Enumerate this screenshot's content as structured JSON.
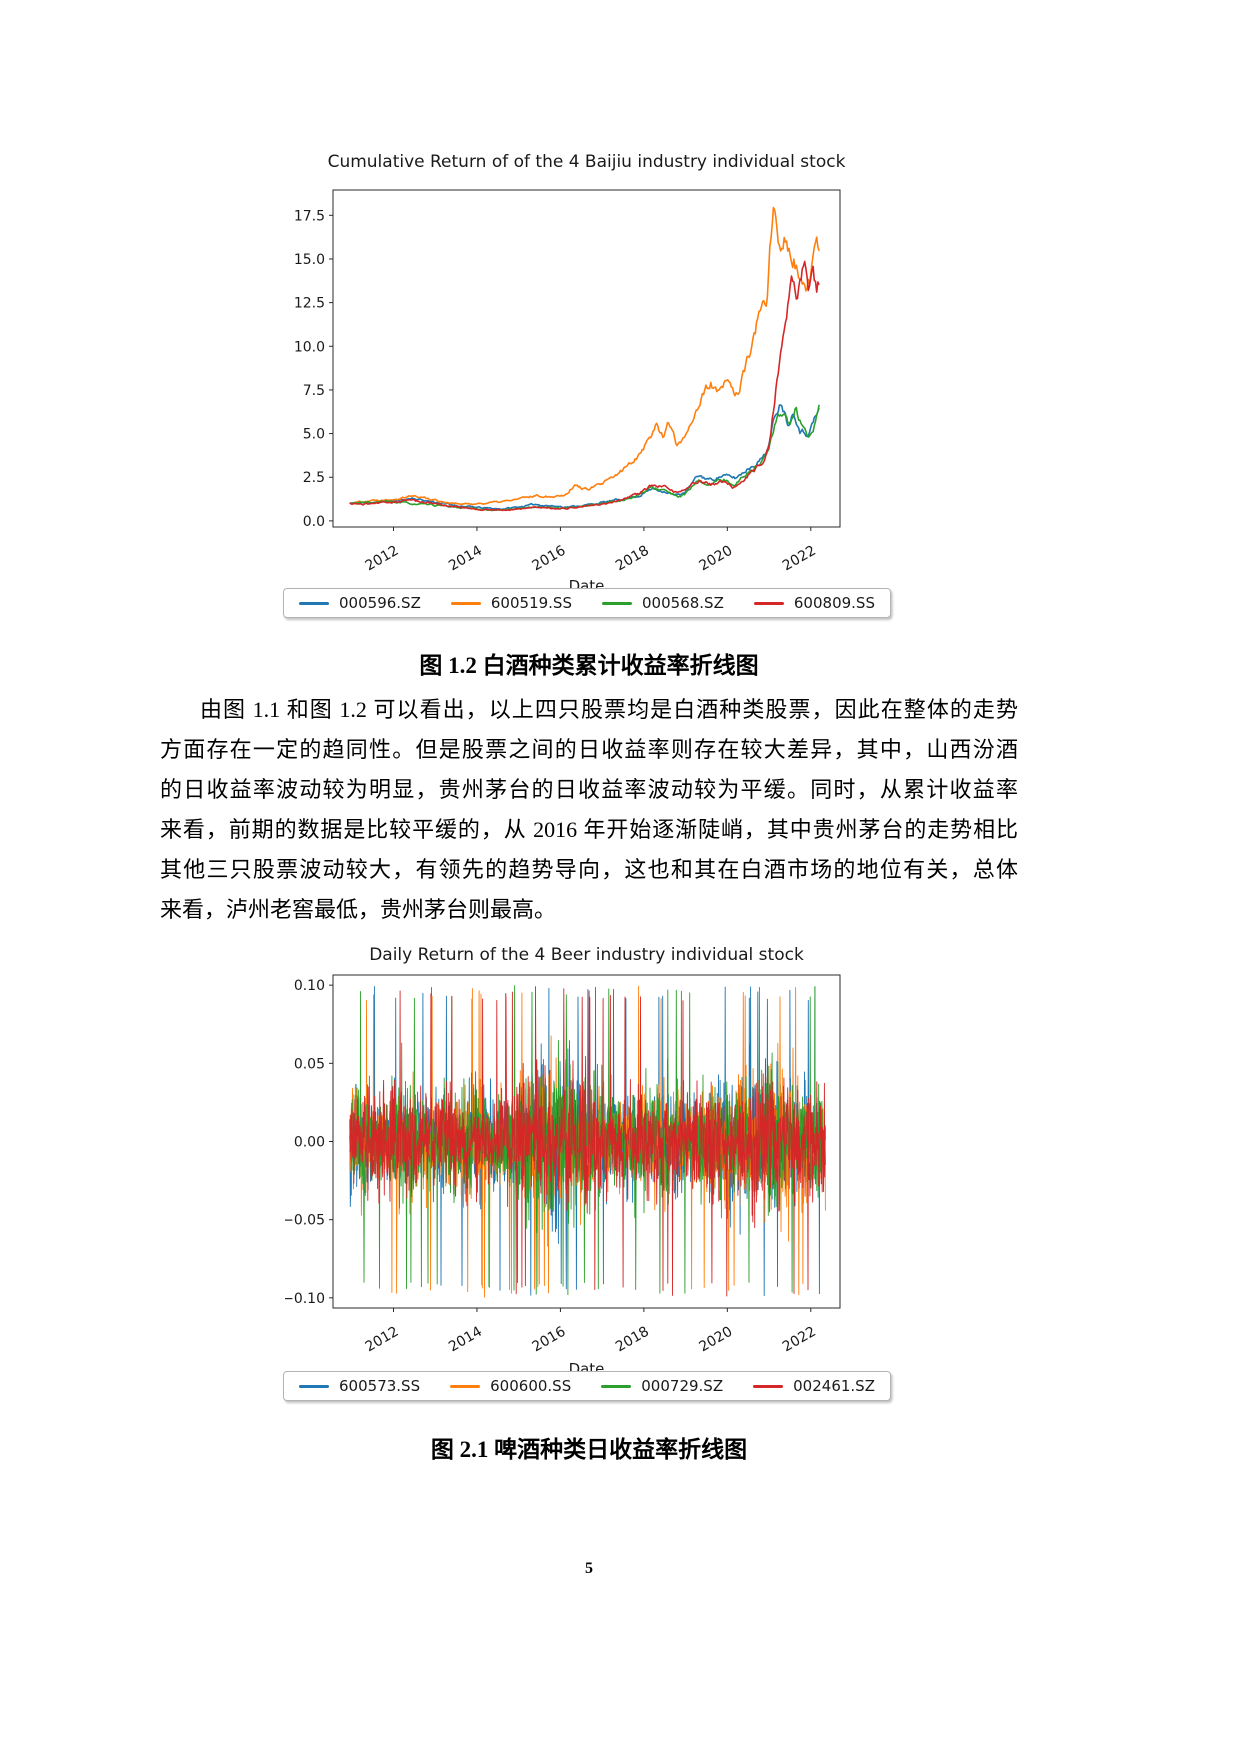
{
  "page_number": "5",
  "figure1": {
    "caption": "图 1.2 白酒种类累计收益率折线图"
  },
  "figure2": {
    "caption": "图 2.1 啤酒种类日收益率折线图"
  },
  "paragraph": {
    "lines": [
      "由图 1.1 和图 1.2 可以看出，以上四只股票均是白酒种类股票，因此在整体的走势",
      "方面存在一定的趋同性。但是股票之间的日收益率则存在较大差异，其中，山西汾酒",
      "的日收益率波动较为明显，贵州茅台的日收益率波动较为平缓。同时，从累计收益率",
      "来看，前期的数据是比较平缓的，从 2016 年开始逐渐陡峭，其中贵州茅台的走势相比",
      "其他三只股票波动较大，有领先的趋势导向，这也和其在白酒市场的地位有关，总体",
      "来看，泸州老窖最低，贵州茅台则最高。"
    ]
  },
  "chart_data": [
    {
      "type": "line",
      "title": "Cumulative Return of of the 4 Baijiu industry individual stock",
      "xlabel": "Date",
      "ylabel": "",
      "grid": false,
      "legend_position": "below",
      "xlim": [
        2010.55,
        2022.7
      ],
      "ylim": [
        -0.35,
        18.95
      ],
      "x_ticks": [
        2012,
        2014,
        2016,
        2018,
        2020,
        2022
      ],
      "y_tick_values": [
        0.0,
        2.5,
        5.0,
        7.5,
        10.0,
        12.5,
        15.0,
        17.5
      ],
      "y_tick_labels": [
        "0.0",
        "2.5",
        "5.0",
        "7.5",
        "10.0",
        "12.5",
        "15.0",
        "17.5"
      ],
      "series": [
        {
          "name": "000596.SZ",
          "color": "#1f77b4",
          "seed": 11,
          "points": [
            [
              2010.95,
              1.0
            ],
            [
              2011.3,
              1.05
            ],
            [
              2011.7,
              1.1
            ],
            [
              2012.1,
              1.15
            ],
            [
              2012.45,
              1.3
            ],
            [
              2012.8,
              1.15
            ],
            [
              2013.2,
              1.0
            ],
            [
              2013.6,
              0.85
            ],
            [
              2014.1,
              0.75
            ],
            [
              2014.6,
              0.68
            ],
            [
              2015.0,
              0.8
            ],
            [
              2015.4,
              0.95
            ],
            [
              2015.8,
              0.85
            ],
            [
              2016.2,
              0.8
            ],
            [
              2016.6,
              0.9
            ],
            [
              2017.0,
              1.05
            ],
            [
              2017.5,
              1.25
            ],
            [
              2017.9,
              1.45
            ],
            [
              2018.2,
              1.85
            ],
            [
              2018.5,
              1.7
            ],
            [
              2018.75,
              1.45
            ],
            [
              2019.0,
              1.65
            ],
            [
              2019.3,
              2.6
            ],
            [
              2019.6,
              2.35
            ],
            [
              2019.9,
              2.6
            ],
            [
              2020.2,
              2.45
            ],
            [
              2020.5,
              3.0
            ],
            [
              2020.8,
              3.5
            ],
            [
              2021.0,
              4.3
            ],
            [
              2021.15,
              6.2
            ],
            [
              2021.3,
              6.9
            ],
            [
              2021.45,
              5.6
            ],
            [
              2021.6,
              6.3
            ],
            [
              2021.75,
              5.2
            ],
            [
              2021.9,
              5.0
            ],
            [
              2022.05,
              5.6
            ],
            [
              2022.2,
              6.4
            ]
          ]
        },
        {
          "name": "600519.SS",
          "color": "#ff7f0e",
          "seed": 22,
          "points": [
            [
              2010.95,
              1.0
            ],
            [
              2011.3,
              1.15
            ],
            [
              2011.7,
              1.2
            ],
            [
              2012.1,
              1.3
            ],
            [
              2012.4,
              1.45
            ],
            [
              2012.8,
              1.3
            ],
            [
              2013.2,
              1.1
            ],
            [
              2013.6,
              0.95
            ],
            [
              2014.1,
              1.0
            ],
            [
              2014.6,
              1.1
            ],
            [
              2015.0,
              1.25
            ],
            [
              2015.4,
              1.45
            ],
            [
              2015.8,
              1.4
            ],
            [
              2016.1,
              1.5
            ],
            [
              2016.35,
              2.05
            ],
            [
              2016.6,
              1.8
            ],
            [
              2017.0,
              2.1
            ],
            [
              2017.4,
              2.7
            ],
            [
              2017.8,
              3.6
            ],
            [
              2018.1,
              4.6
            ],
            [
              2018.3,
              5.5
            ],
            [
              2018.45,
              4.9
            ],
            [
              2018.6,
              5.7
            ],
            [
              2018.8,
              4.2
            ],
            [
              2019.0,
              5.0
            ],
            [
              2019.3,
              6.6
            ],
            [
              2019.6,
              7.9
            ],
            [
              2019.8,
              7.2
            ],
            [
              2020.0,
              8.0
            ],
            [
              2020.25,
              7.2
            ],
            [
              2020.5,
              9.3
            ],
            [
              2020.75,
              11.6
            ],
            [
              2020.95,
              12.6
            ],
            [
              2021.1,
              18.6
            ],
            [
              2021.25,
              15.3
            ],
            [
              2021.4,
              16.3
            ],
            [
              2021.55,
              15.2
            ],
            [
              2021.7,
              14.3
            ],
            [
              2021.85,
              12.9
            ],
            [
              2022.0,
              13.8
            ],
            [
              2022.1,
              15.0
            ],
            [
              2022.2,
              15.6
            ]
          ]
        },
        {
          "name": "000568.SZ",
          "color": "#2ca02c",
          "seed": 33,
          "points": [
            [
              2010.95,
              1.0
            ],
            [
              2011.4,
              1.05
            ],
            [
              2011.8,
              1.1
            ],
            [
              2012.2,
              1.05
            ],
            [
              2012.6,
              0.95
            ],
            [
              2013.0,
              0.9
            ],
            [
              2013.5,
              0.78
            ],
            [
              2014.0,
              0.68
            ],
            [
              2014.5,
              0.6
            ],
            [
              2015.0,
              0.72
            ],
            [
              2015.5,
              0.8
            ],
            [
              2016.0,
              0.72
            ],
            [
              2016.5,
              0.82
            ],
            [
              2017.0,
              1.0
            ],
            [
              2017.5,
              1.2
            ],
            [
              2017.9,
              1.5
            ],
            [
              2018.2,
              1.9
            ],
            [
              2018.5,
              1.75
            ],
            [
              2018.8,
              1.35
            ],
            [
              2019.0,
              1.55
            ],
            [
              2019.3,
              2.25
            ],
            [
              2019.6,
              2.1
            ],
            [
              2019.9,
              2.35
            ],
            [
              2020.2,
              2.1
            ],
            [
              2020.5,
              2.8
            ],
            [
              2020.8,
              3.3
            ],
            [
              2021.0,
              4.2
            ],
            [
              2021.2,
              5.9
            ],
            [
              2021.35,
              6.4
            ],
            [
              2021.5,
              5.4
            ],
            [
              2021.65,
              6.4
            ],
            [
              2021.8,
              5.2
            ],
            [
              2021.95,
              4.6
            ],
            [
              2022.1,
              5.4
            ],
            [
              2022.2,
              6.5
            ]
          ]
        },
        {
          "name": "600809.SS",
          "color": "#d62728",
          "seed": 44,
          "points": [
            [
              2010.95,
              1.0
            ],
            [
              2011.3,
              0.95
            ],
            [
              2011.7,
              1.05
            ],
            [
              2012.1,
              1.1
            ],
            [
              2012.45,
              1.2
            ],
            [
              2012.8,
              1.05
            ],
            [
              2013.2,
              0.9
            ],
            [
              2013.6,
              0.78
            ],
            [
              2014.1,
              0.65
            ],
            [
              2014.6,
              0.6
            ],
            [
              2015.0,
              0.68
            ],
            [
              2015.5,
              0.78
            ],
            [
              2016.0,
              0.7
            ],
            [
              2016.5,
              0.8
            ],
            [
              2017.0,
              0.95
            ],
            [
              2017.5,
              1.25
            ],
            [
              2017.9,
              1.6
            ],
            [
              2018.2,
              2.05
            ],
            [
              2018.5,
              1.9
            ],
            [
              2018.8,
              1.6
            ],
            [
              2019.0,
              1.8
            ],
            [
              2019.3,
              2.3
            ],
            [
              2019.6,
              2.1
            ],
            [
              2019.9,
              2.25
            ],
            [
              2020.2,
              1.85
            ],
            [
              2020.5,
              2.6
            ],
            [
              2020.8,
              3.2
            ],
            [
              2021.0,
              4.2
            ],
            [
              2021.15,
              7.3
            ],
            [
              2021.3,
              9.8
            ],
            [
              2021.45,
              12.2
            ],
            [
              2021.55,
              14.6
            ],
            [
              2021.65,
              12.4
            ],
            [
              2021.75,
              13.6
            ],
            [
              2021.85,
              14.9
            ],
            [
              2021.95,
              12.9
            ],
            [
              2022.05,
              14.3
            ],
            [
              2022.15,
              13.3
            ],
            [
              2022.2,
              13.8
            ]
          ]
        }
      ]
    },
    {
      "type": "line",
      "subtype": "daily-return-noise",
      "title": "Daily Return of the 4 Beer industry individual stock",
      "xlabel": "Date",
      "ylabel": "",
      "grid": false,
      "legend_position": "below",
      "xlim": [
        2010.55,
        2022.7
      ],
      "ylim": [
        -0.1065,
        0.1065
      ],
      "daily_limit": 0.1,
      "x_ticks": [
        2012,
        2014,
        2016,
        2018,
        2020,
        2022
      ],
      "y_tick_values": [
        0.1,
        0.05,
        0.0,
        -0.05,
        -0.1
      ],
      "y_tick_labels": [
        "0.10",
        "0.05",
        "0.00",
        "−0.05",
        "−0.10"
      ],
      "series": [
        {
          "name": "600573.SS",
          "color": "#1f77b4",
          "seed": 101
        },
        {
          "name": "600600.SS",
          "color": "#ff7f0e",
          "seed": 202
        },
        {
          "name": "000729.SZ",
          "color": "#2ca02c",
          "seed": 303
        },
        {
          "name": "002461.SZ",
          "color": "#d62728",
          "seed": 404
        }
      ]
    }
  ]
}
